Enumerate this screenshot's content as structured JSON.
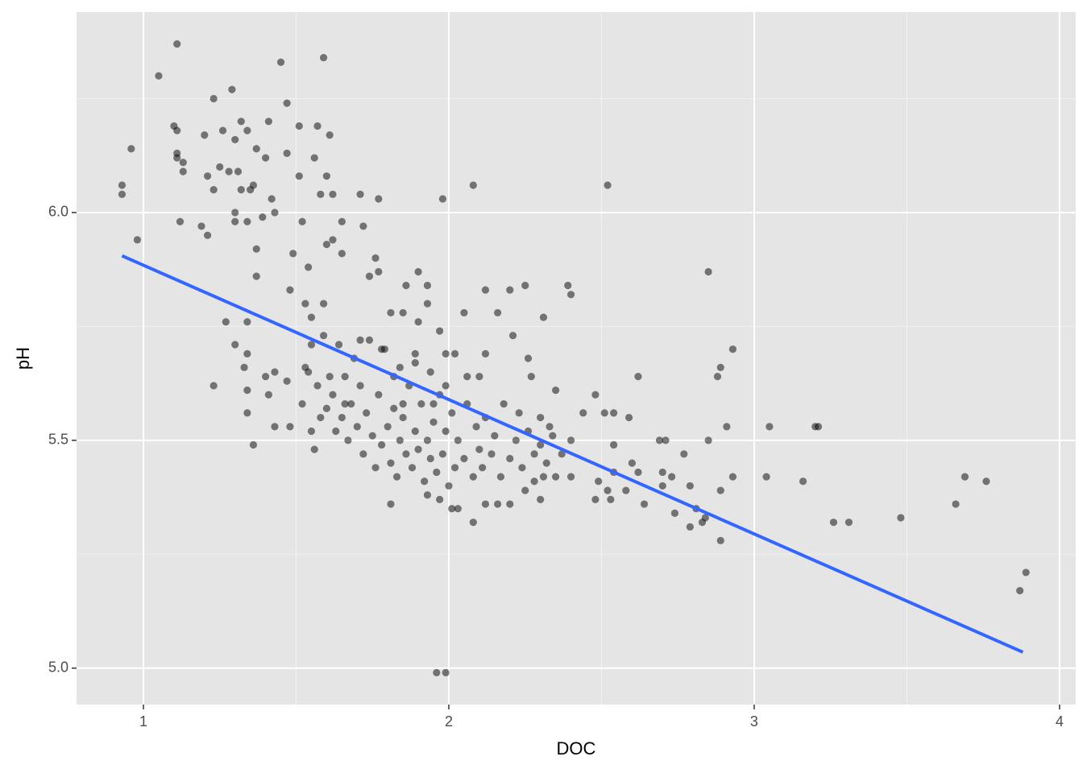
{
  "chart_data": {
    "type": "scatter",
    "x_label": "DOC",
    "y_label": "pH",
    "xlim": [
      0.781,
      4.053
    ],
    "ylim": [
      4.92,
      6.44
    ],
    "xticks": [
      1,
      2,
      3,
      4
    ],
    "yticks": [
      {
        "value": 5,
        "label": "5.0"
      },
      5.5,
      {
        "value": 6,
        "label": "6.0"
      }
    ],
    "minor_xgrid": [
      1.5,
      2.5,
      3.5
    ],
    "minor_ygrid": [
      5.25,
      5.75,
      6.25
    ],
    "grid": true,
    "background": "#e5e5e5",
    "series": [
      {
        "color": "#000000",
        "opacity": 0.5,
        "x": [
          0.93,
          0.93,
          0.96,
          0.98,
          1.05,
          1.11,
          1.1,
          1.11,
          1.11,
          1.11,
          1.13,
          1.13,
          1.12,
          1.2,
          1.19,
          1.21,
          1.23,
          1.29,
          1.21,
          1.23,
          1.25,
          1.26,
          1.3,
          1.32,
          1.34,
          1.28,
          1.31,
          1.32,
          1.3,
          1.3,
          1.34,
          1.35,
          1.36,
          1.37,
          1.41,
          1.4,
          1.39,
          1.42,
          1.43,
          1.37,
          1.37,
          1.45,
          1.47,
          1.47,
          1.51,
          1.51,
          1.56,
          1.57,
          1.59,
          1.61,
          1.6,
          1.58,
          1.62,
          1.52,
          1.49,
          1.54,
          1.48,
          1.6,
          1.62,
          1.65,
          1.65,
          1.71,
          1.77,
          1.72,
          1.27,
          1.3,
          1.34,
          1.34,
          1.23,
          1.33,
          1.34,
          1.34,
          1.36,
          1.4,
          1.41,
          1.43,
          1.43,
          1.47,
          1.48,
          1.53,
          1.55,
          1.55,
          1.53,
          1.59,
          1.59,
          1.64,
          1.66,
          1.71,
          1.74,
          1.76,
          1.77,
          1.81,
          1.85,
          1.86,
          1.9,
          1.93,
          1.93,
          1.9,
          1.78,
          1.82,
          1.89,
          1.97,
          1.98,
          2.08,
          2.52,
          2.05,
          2.12,
          2.16,
          2.2,
          2.25,
          2.21,
          2.31,
          2.39,
          2.4,
          2.85,
          2.93,
          2.89,
          2.88,
          2.62,
          2.1,
          2.12,
          2.26,
          2.02,
          1.99,
          2.06,
          2.27,
          2.35,
          2.48,
          2.51,
          2.54,
          2.59,
          2.44,
          2.4,
          2.33,
          2.3,
          2.23,
          2.91,
          2.85,
          3.05,
          3.2,
          3.21,
          2.69,
          2.71,
          2.54,
          2.77,
          2.7,
          2.6,
          2.62,
          2.54,
          2.73,
          2.79,
          2.93,
          3.04,
          3.16,
          3.69,
          3.76,
          3.66,
          3.48,
          3.31,
          3.26,
          2.89,
          2.84,
          2.79,
          2.83,
          2.81,
          2.74,
          2.64,
          2.89,
          2.7,
          2.48,
          2.53,
          2.58,
          2.52,
          2.49,
          2.4,
          2.35,
          3.89,
          3.87,
          1.96,
          1.99,
          2.08,
          2.01,
          2.03,
          1.97,
          1.93,
          1.81,
          2.12,
          2.16,
          2.2,
          2.3,
          2.25,
          2.28,
          2.31,
          1.52,
          1.55,
          1.56,
          1.58,
          1.6,
          1.62,
          1.63,
          1.65,
          1.67,
          1.68,
          1.7,
          1.72,
          1.73,
          1.75,
          1.76,
          1.77,
          1.78,
          1.8,
          1.81,
          1.82,
          1.83,
          1.84,
          1.85,
          1.86,
          1.87,
          1.88,
          1.89,
          1.9,
          1.91,
          1.92,
          1.93,
          1.94,
          1.95,
          1.96,
          1.97,
          1.98,
          1.99,
          2.0,
          2.01,
          2.02,
          2.03,
          2.05,
          2.06,
          2.08,
          2.09,
          2.1,
          2.11,
          2.12,
          2.14,
          2.15,
          2.17,
          2.18,
          2.2,
          2.22,
          2.24,
          2.26,
          2.28,
          2.3,
          2.32,
          2.34,
          2.37,
          1.61,
          1.69,
          1.74,
          1.79,
          1.84,
          1.89,
          1.94,
          1.99,
          1.71,
          1.66,
          1.57,
          1.54,
          1.85,
          1.95
        ],
        "values": [
          6.06,
          6.04,
          6.14,
          5.94,
          6.3,
          6.37,
          6.19,
          6.18,
          6.13,
          6.12,
          6.11,
          6.09,
          5.98,
          6.17,
          5.97,
          5.95,
          6.25,
          6.27,
          6.08,
          6.05,
          6.1,
          6.18,
          6.16,
          6.2,
          6.18,
          6.09,
          6.09,
          6.05,
          6.0,
          5.98,
          5.98,
          6.05,
          6.06,
          6.14,
          6.2,
          6.12,
          5.99,
          6.03,
          6.0,
          5.92,
          5.86,
          6.33,
          6.24,
          6.13,
          6.19,
          6.08,
          6.12,
          6.19,
          6.34,
          6.17,
          6.08,
          6.04,
          6.04,
          5.98,
          5.91,
          5.88,
          5.83,
          5.93,
          5.94,
          5.98,
          5.91,
          6.04,
          6.03,
          5.97,
          5.76,
          5.71,
          5.76,
          5.69,
          5.62,
          5.66,
          5.61,
          5.56,
          5.49,
          5.64,
          5.6,
          5.65,
          5.53,
          5.63,
          5.53,
          5.8,
          5.77,
          5.71,
          5.66,
          5.8,
          5.73,
          5.71,
          5.64,
          5.72,
          5.86,
          5.9,
          5.87,
          5.78,
          5.78,
          5.84,
          5.87,
          5.84,
          5.8,
          5.76,
          5.7,
          5.64,
          5.67,
          5.74,
          6.03,
          6.06,
          6.06,
          5.78,
          5.83,
          5.78,
          5.83,
          5.84,
          5.73,
          5.77,
          5.84,
          5.82,
          5.87,
          5.7,
          5.66,
          5.64,
          5.64,
          5.64,
          5.69,
          5.68,
          5.69,
          5.69,
          5.64,
          5.64,
          5.61,
          5.6,
          5.56,
          5.56,
          5.55,
          5.56,
          5.5,
          5.53,
          5.55,
          5.56,
          5.53,
          5.5,
          5.53,
          5.53,
          5.53,
          5.5,
          5.5,
          5.49,
          5.47,
          5.43,
          5.45,
          5.43,
          5.43,
          5.42,
          5.4,
          5.42,
          5.42,
          5.41,
          5.42,
          5.41,
          5.36,
          5.33,
          5.32,
          5.32,
          5.28,
          5.33,
          5.31,
          5.32,
          5.35,
          5.34,
          5.36,
          5.39,
          5.4,
          5.37,
          5.37,
          5.39,
          5.39,
          5.41,
          5.42,
          5.42,
          5.21,
          5.17,
          4.99,
          4.99,
          5.32,
          5.35,
          5.35,
          5.37,
          5.38,
          5.36,
          5.36,
          5.36,
          5.36,
          5.37,
          5.39,
          5.41,
          5.42,
          5.58,
          5.52,
          5.48,
          5.55,
          5.57,
          5.6,
          5.52,
          5.55,
          5.5,
          5.58,
          5.53,
          5.47,
          5.56,
          5.51,
          5.44,
          5.6,
          5.49,
          5.53,
          5.45,
          5.57,
          5.42,
          5.5,
          5.55,
          5.47,
          5.62,
          5.44,
          5.52,
          5.48,
          5.58,
          5.41,
          5.5,
          5.46,
          5.54,
          5.43,
          5.6,
          5.47,
          5.52,
          5.4,
          5.56,
          5.44,
          5.5,
          5.46,
          5.58,
          5.42,
          5.53,
          5.48,
          5.44,
          5.55,
          5.47,
          5.51,
          5.42,
          5.58,
          5.46,
          5.5,
          5.44,
          5.52,
          5.47,
          5.49,
          5.45,
          5.51,
          5.47,
          5.64,
          5.68,
          5.72,
          5.7,
          5.66,
          5.69,
          5.65,
          5.62,
          5.62,
          5.58,
          5.62,
          5.65,
          5.58,
          5.58
        ]
      }
    ],
    "trend": {
      "color": "#3366ff",
      "x": [
        0.93,
        3.88
      ],
      "values": [
        5.905,
        5.035
      ]
    }
  }
}
